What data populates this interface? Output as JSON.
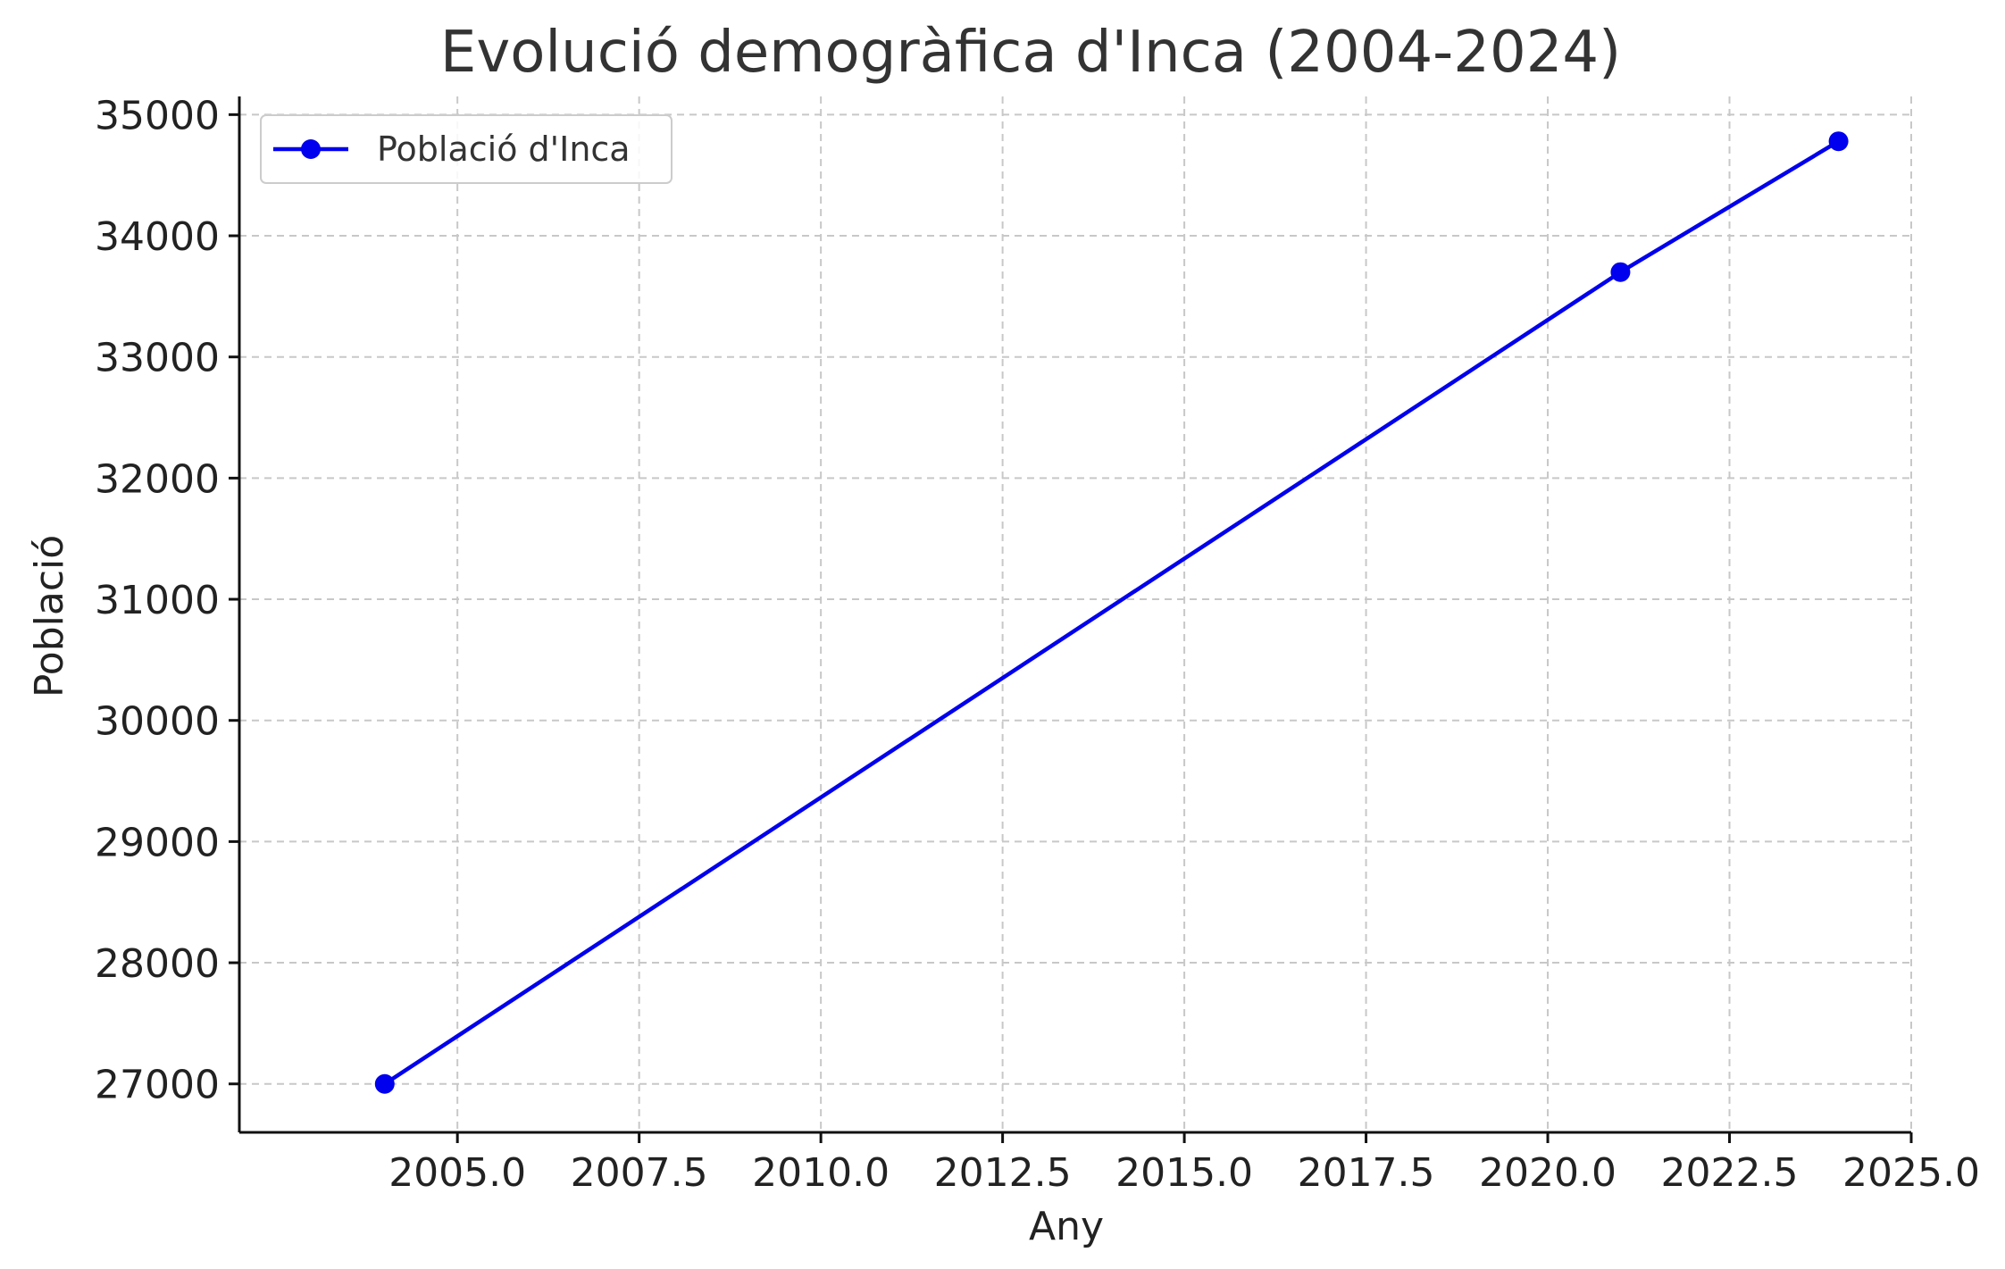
{
  "chart_data": {
    "type": "line",
    "title": "Evolució demogràfica d'Inca (2004-2024)",
    "xlabel": "Any",
    "ylabel": "Població",
    "xlim": [
      2002,
      2025
    ],
    "ylim": [
      26600,
      35150
    ],
    "x_ticks": [
      2005.0,
      2007.5,
      2010.0,
      2012.5,
      2015.0,
      2017.5,
      2020.0,
      2022.5,
      2025.0
    ],
    "x_tick_labels": [
      "2005.0",
      "2007.5",
      "2010.0",
      "2012.5",
      "2015.0",
      "2017.5",
      "2020.0",
      "2022.5",
      "2025.0"
    ],
    "y_ticks": [
      27000,
      28000,
      29000,
      30000,
      31000,
      32000,
      33000,
      34000,
      35000
    ],
    "y_tick_labels": [
      "27000",
      "28000",
      "29000",
      "30000",
      "31000",
      "32000",
      "33000",
      "34000",
      "35000"
    ],
    "grid": true,
    "legend_position": "top-left",
    "series": [
      {
        "name": "Població d'Inca",
        "color": "#0000ee",
        "marker": "circle",
        "x": [
          2004,
          2021,
          2024
        ],
        "y": [
          27000,
          33700,
          34780
        ]
      }
    ]
  }
}
